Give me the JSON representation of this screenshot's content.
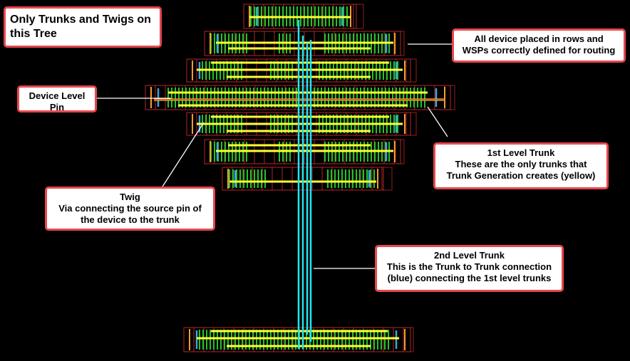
{
  "title_box": {
    "line1": "Only Trunks and Twigs on",
    "line2": "this Tree"
  },
  "callouts": {
    "rows": {
      "line1": "All device placed in rows and",
      "line2": "WSPs correctly defined for routing"
    },
    "pin": {
      "line1": "Device Level",
      "line2": "Pin"
    },
    "trunk1": {
      "line1": "1st Level Trunk",
      "line2": "These are the only trunks that",
      "line3": "Trunk Generation creates (yellow)"
    },
    "twig": {
      "line1": "Twig",
      "line2": "Via connecting the source pin of",
      "line3": "the device to the trunk"
    },
    "trunk2": {
      "line1": "2nd Level Trunk",
      "line2": "This is the Trunk to Trunk connection",
      "line3": "(blue) connecting the 1st level trunks"
    }
  },
  "colors": {
    "background": "#000000",
    "trunk_1st": "#ffff33",
    "trunk_2nd": "#22e5ee",
    "gate": "#22c32a",
    "outline": "#b5262a",
    "pin": "#ff9a2a",
    "via": "#3aa7d8",
    "callout_border": "#e8474d"
  }
}
